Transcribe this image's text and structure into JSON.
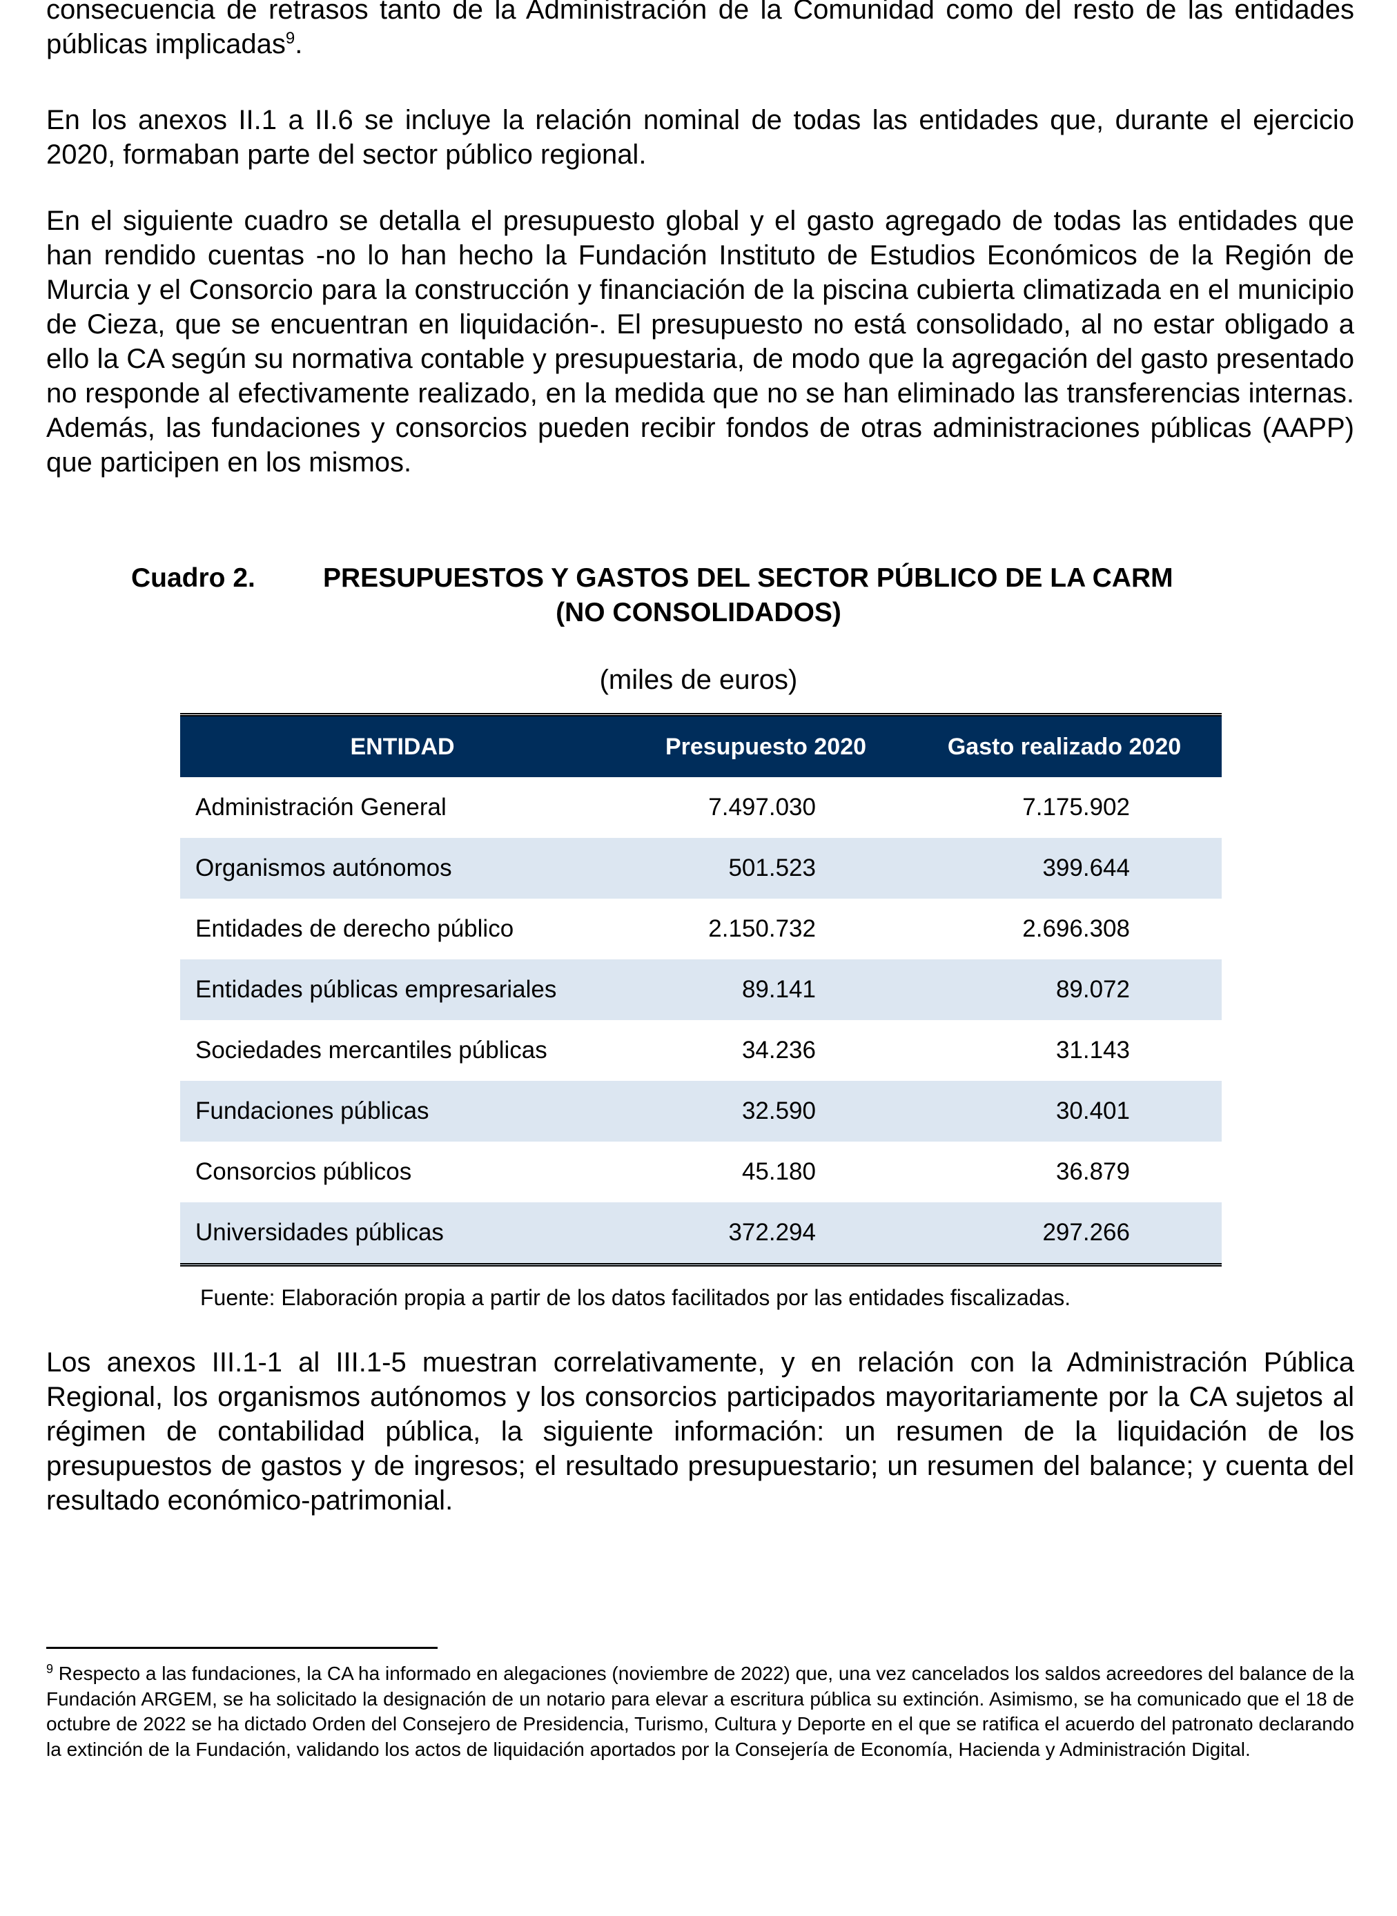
{
  "paragraphs": [
    {
      "text": "consecuencia de retrasos tanto de la Administración de la Comunidad como del resto de las entidades públicas implicadas",
      "footnote_ref": "9",
      "tail": "."
    },
    {
      "text": "En los anexos II.1 a II.6 se incluye la relación nominal de todas las entidades que, durante el ejercicio 2020, formaban parte del sector público regional."
    },
    {
      "text": "En el siguiente cuadro se detalla el presupuesto global y el gasto agregado de todas las entidades que han rendido cuentas -no lo han hecho la Fundación Instituto de Estudios Económicos de la Región de Murcia y el Consorcio para la construcción y financiación de la piscina cubierta climatizada en el municipio de Cieza, que se encuentran en liquidación-. El presupuesto no está consolidado, al no estar obligado a ello la CA según su normativa contable y presupuestaria, de modo que la agregación del gasto presentado no responde al efectivamente realizado, en la medida que no se han eliminado las transferencias internas. Además, las fundaciones y consorcios pueden recibir fondos de otras administraciones públicas (AAPP) que participen en los mismos."
    },
    {
      "text": "Los anexos III.1-1 al III.1-5 muestran correlativamente, y en relación con la Administración Pública Regional, los organismos autónomos y los consorcios participados mayoritariamente por la CA sujetos al régimen de contabilidad pública, la siguiente información: un resumen de la liquidación de los presupuestos de gastos y de ingresos; el resultado presupuestario; un resumen del balance; y cuenta del resultado económico-patrimonial."
    }
  ],
  "table": {
    "number": "Cuadro 2.",
    "title_line1": "PRESUPUESTOS Y GASTOS DEL SECTOR PÚBLICO DE LA CARM",
    "title_line2": "(NO  CONSOLIDADOS)",
    "units": "(miles de euros)",
    "header_color": "#002d5b",
    "stripe_color": "#dce6f1",
    "columns": [
      "ENTIDAD",
      "Presupuesto 2020",
      "Gasto realizado 2020"
    ],
    "rows": [
      [
        "Administración General",
        "7.497.030",
        "7.175.902"
      ],
      [
        "Organismos autónomos",
        "501.523",
        "399.644"
      ],
      [
        "Entidades de derecho público",
        "2.150.732",
        "2.696.308"
      ],
      [
        "Entidades públicas empresariales",
        "89.141",
        "89.072"
      ],
      [
        "Sociedades mercantiles públicas",
        "34.236",
        "31.143"
      ],
      [
        "Fundaciones públicas",
        "32.590",
        "30.401"
      ],
      [
        "Consorcios públicos",
        "45.180",
        "36.879"
      ],
      [
        "Universidades públicas",
        "372.294",
        "297.266"
      ]
    ],
    "source": "Fuente: Elaboración propia a partir de los datos facilitados por las entidades fiscalizadas."
  },
  "footnote": {
    "number": "9",
    "text": " Respecto a las fundaciones, la CA ha informado en alegaciones (noviembre de 2022) que, una vez cancelados los saldos acreedores del balance de la Fundación ARGEM, se ha solicitado la designación de un notario para elevar a escritura pública su extinción. Asimismo, se ha comunicado que el 18 de octubre de 2022 se ha dictado Orden del Consejero de Presidencia, Turismo, Cultura y Deporte en el que se ratifica el acuerdo del patronato declarando la extinción de la Fundación, validando los actos de liquidación aportados por la Consejería de Economía, Hacienda y Administración Digital."
  }
}
